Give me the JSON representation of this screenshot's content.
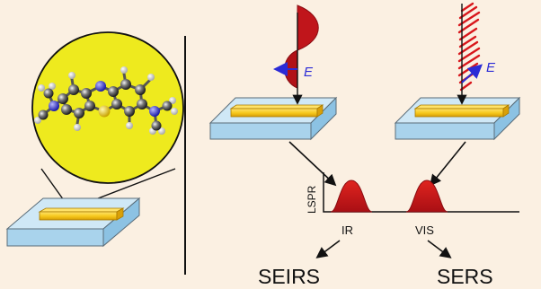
{
  "colors": {
    "background": "#fbf0e2",
    "substrate_top": "#cfe8f6",
    "substrate_side": "#9ccce9",
    "nanorod": "#f6c81c",
    "circle_fill": "#eeea1e",
    "wave_red": "#c0151b",
    "peak_red": "#d8161b",
    "e_vector": "#2b2bd6"
  },
  "icons": {
    "molecule": "methylene-blue-molecule-icon",
    "rod": "gold-nanorod-icon",
    "substrate": "substrate-slab-icon"
  },
  "labels": {
    "e_left": "E",
    "e_right": "E",
    "lspr_axis": "LSPR",
    "peak_ir": "IR",
    "peak_vis": "VIS",
    "seirs": "SEIRS",
    "sers": "SERS"
  },
  "plot": {
    "peaks": [
      "IR",
      "VIS"
    ]
  }
}
